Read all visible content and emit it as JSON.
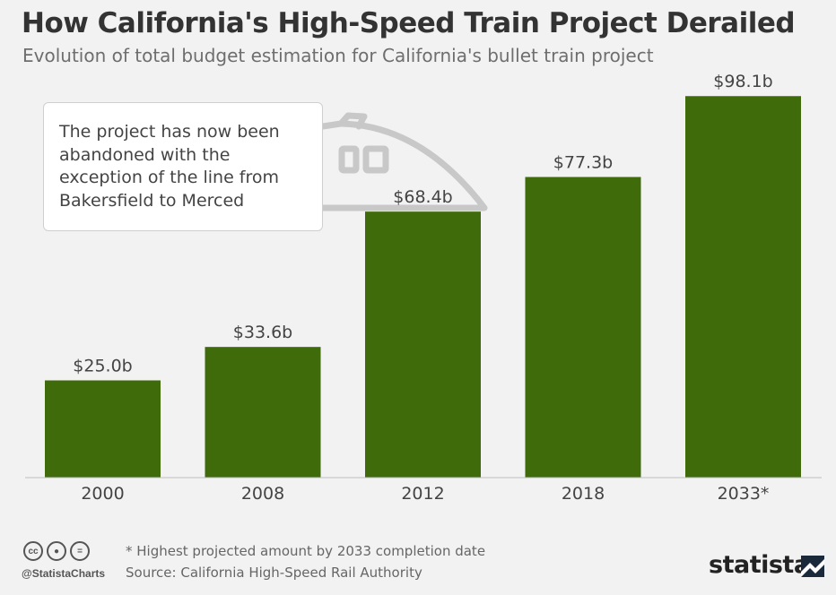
{
  "chart_data": {
    "type": "bar",
    "title": "How California's High-Speed Train Project Derailed",
    "subtitle": "Evolution of total budget estimation for California's bullet train project",
    "categories": [
      "2000",
      "2008",
      "2012",
      "2018",
      "2033*"
    ],
    "values": [
      25.0,
      33.6,
      68.4,
      77.3,
      98.1
    ],
    "value_labels": [
      "$25.0b",
      "$33.6b",
      "$68.4b",
      "$77.3b",
      "$98.1b"
    ],
    "unit": "billion US dollars",
    "ylim": [
      0,
      100
    ],
    "grid": false,
    "bar_color": "#3f6b0a",
    "annotation": "The project has now been abandoned with the exception of the line from Bakersfield to Merced"
  },
  "footer": {
    "note": "* Highest projected amount by 2033 completion date",
    "source": "Source: California High-Speed Rail Authority",
    "handle": "@StatistaCharts",
    "brand": "statista",
    "license_icons": [
      "cc-icon",
      "by-icon",
      "nd-icon"
    ]
  },
  "colors": {
    "background": "#f2f2f2",
    "bar": "#3f6b0a",
    "title": "#333333",
    "text": "#666666"
  }
}
